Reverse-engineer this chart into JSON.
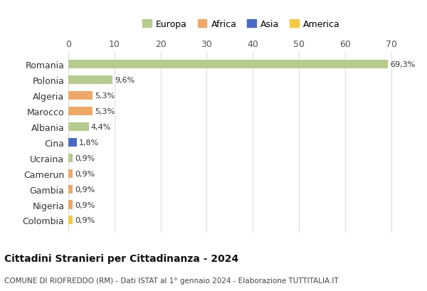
{
  "countries": [
    "Romania",
    "Polonia",
    "Algeria",
    "Marocco",
    "Albania",
    "Cina",
    "Ucraina",
    "Camerun",
    "Gambia",
    "Nigeria",
    "Colombia"
  ],
  "values": [
    69.3,
    9.6,
    5.3,
    5.3,
    4.4,
    1.8,
    0.9,
    0.9,
    0.9,
    0.9,
    0.9
  ],
  "labels": [
    "69,3%",
    "9,6%",
    "5,3%",
    "5,3%",
    "4,4%",
    "1,8%",
    "0,9%",
    "0,9%",
    "0,9%",
    "0,9%",
    "0,9%"
  ],
  "continents": [
    "Europa",
    "Europa",
    "Africa",
    "Africa",
    "Europa",
    "Asia",
    "Europa",
    "Africa",
    "Africa",
    "Africa",
    "America"
  ],
  "colors": {
    "Europa": "#b5cc8e",
    "Africa": "#f0a868",
    "Asia": "#4a6bc4",
    "America": "#f5c842"
  },
  "legend_order": [
    "Europa",
    "Africa",
    "Asia",
    "America"
  ],
  "legend_colors": [
    "#b5cc8e",
    "#f0a868",
    "#4a6bc4",
    "#f5c842"
  ],
  "xlim": [
    0,
    75
  ],
  "xticks": [
    0,
    10,
    20,
    30,
    40,
    50,
    60,
    70
  ],
  "title": "Cittadini Stranieri per Cittadinanza - 2024",
  "subtitle": "COMUNE DI RIOFREDDO (RM) - Dati ISTAT al 1° gennaio 2024 - Elaborazione TUTTITALIA.IT",
  "background_color": "#ffffff",
  "grid_color": "#dddddd",
  "bar_height": 0.55,
  "figsize": [
    6.0,
    4.1
  ],
  "dpi": 100
}
